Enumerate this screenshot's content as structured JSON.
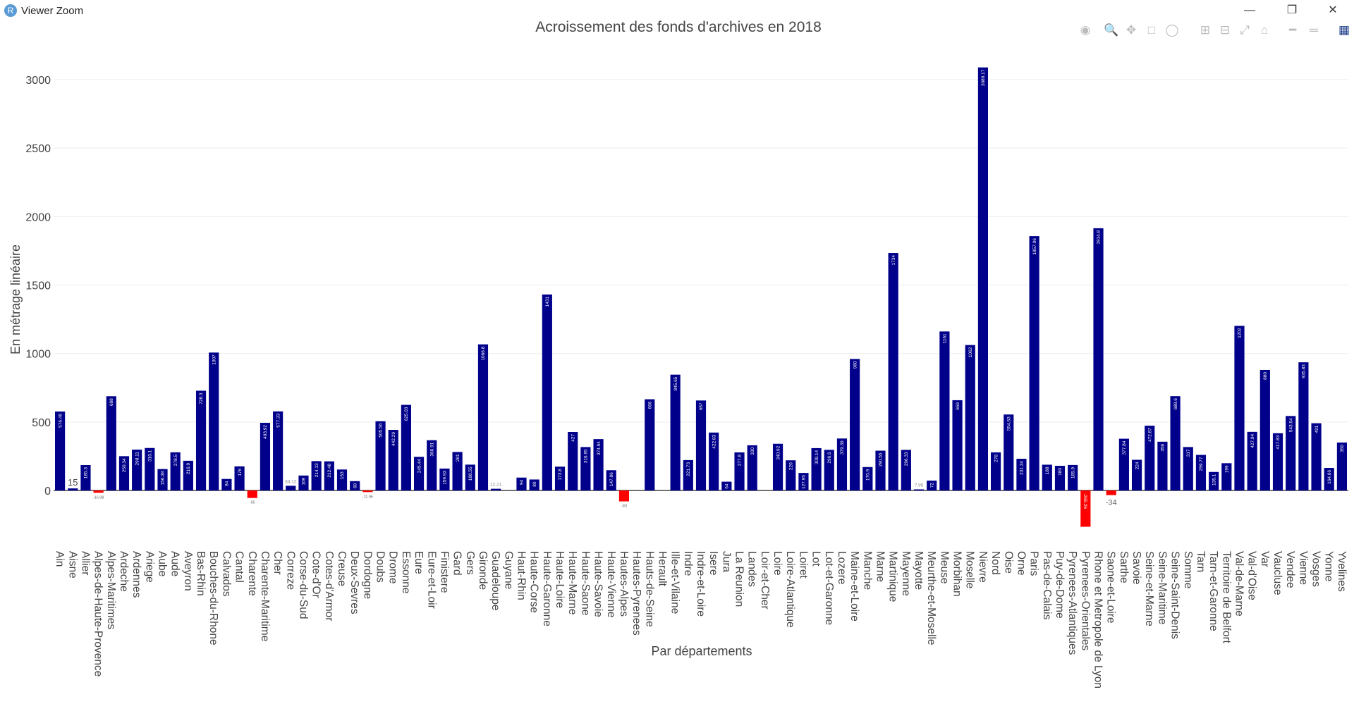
{
  "window": {
    "title": "Viewer Zoom",
    "icon": "R"
  },
  "modebar": [
    "camera-icon",
    "zoom-icon",
    "pan-icon",
    "box-select-icon",
    "lasso-icon",
    "zoom-in-icon",
    "zoom-out-icon",
    "autoscale-icon",
    "home-icon",
    "spike-lines-icon",
    "compare-hover-icon",
    "plotly-logo-icon"
  ],
  "chart_data": {
    "type": "bar",
    "title": "Acroissement des fonds d'archives en 2018",
    "xlabel": "Par départements",
    "ylabel": "En métrage linéaire",
    "ylim": [
      -300,
      3150
    ],
    "yticks": [
      0,
      500,
      1000,
      1500,
      2000,
      2500,
      3000
    ],
    "grid": true,
    "colors": {
      "positive": "#00008b",
      "negative": "#ff0000"
    },
    "categories": [
      "Ain",
      "Aisne",
      "Allier",
      "Alpes-de-Haute-Provence",
      "Alpes-Maritimes",
      "Ardeche",
      "Ardennes",
      "Ariege",
      "Aube",
      "Aude",
      "Aveyron",
      "Bas-Rhin",
      "Bouches-du-Rhone",
      "Calvados",
      "Cantal",
      "Charente",
      "Charente-Maritime",
      "Cher",
      "Correze",
      "Corse-du-Sud",
      "Cote-d'Or",
      "Cotes-d'Armor",
      "Creuse",
      "Deux-Sevres",
      "Dordogne",
      "Doubs",
      "Drome",
      "Essonne",
      "Eure",
      "Eure-et-Loir",
      "Finistere",
      "Gard",
      "Gers",
      "Gironde",
      "Guadeloupe",
      "Guyane",
      "Haut-Rhin",
      "Haute-Corse",
      "Haute-Garonne",
      "Haute-Loire",
      "Haute-Marne",
      "Haute-Saone",
      "Haute-Savoie",
      "Haute-Vienne",
      "Hautes-Alpes",
      "Hautes-Pyrenees",
      "Hauts-de-Seine",
      "Herault",
      "Ille-et-Vilaine",
      "Indre",
      "Indre-et-Loire",
      "Isere",
      "Jura",
      "La Reunion",
      "Landes",
      "Loir-et-Cher",
      "Loire",
      "Loire-Atlantique",
      "Loiret",
      "Lot",
      "Lot-et-Garonne",
      "Lozere",
      "Maine-et-Loire",
      "Manche",
      "Marne",
      "Martinique",
      "Mayenne",
      "Mayotte",
      "Meurthe-et-Moselle",
      "Meuse",
      "Morbihan",
      "Moselle",
      "Nievre",
      "Nord",
      "Oise",
      "Orne",
      "Paris",
      "Pas-de-Calais",
      "Puy-de-Dome",
      "Pyrenees-Atlantiques",
      "Pyrenees-Orientales",
      "Rhone et Metropole de Lyon",
      "Saone-et-Loire",
      "Sarthe",
      "Savoie",
      "Seine-et-Marne",
      "Seine-Maritime",
      "Seine-Saint-Denis",
      "Somme",
      "Tarn",
      "Tarn-et-Garonne",
      "Territoire de Belfort",
      "Val-de-Marne",
      "Val-d'Oise",
      "Var",
      "Vaucluse",
      "Vendee",
      "Vienne",
      "Vosges",
      "Yonne",
      "Yvelines"
    ],
    "values": [
      576.46,
      15,
      185.3,
      -16.98,
      688,
      250.34,
      298.11,
      310.1,
      156.38,
      278.5,
      216.9,
      728.3,
      1007,
      84,
      176,
      -55,
      493.92,
      577.33,
      34.12,
      109,
      214.13,
      212.48,
      153,
      68,
      -11.96,
      505.56,
      442.29,
      625.03,
      245.44,
      366.91,
      159.93,
      281,
      188.55,
      1066.8,
      12.21,
      0,
      94,
      80,
      1431,
      173.8,
      427,
      316.95,
      374.94,
      147.86,
      -80,
      0,
      666,
      0,
      845.65,
      221.73,
      657,
      422.83,
      64,
      277.8,
      330,
      0,
      340.92,
      220,
      127.95,
      309.14,
      296.6,
      379.39,
      960,
      170.9,
      290.55,
      1734,
      296.33,
      7.95,
      72,
      1161,
      659,
      1062,
      3089.17,
      278,
      554.63,
      231.34,
      1857.06,
      188,
      180,
      185.9,
      -265.26,
      1914.8,
      -34,
      377.84,
      224,
      472.87,
      356,
      688.6,
      317,
      259.77,
      135.1,
      199,
      1202,
      427.94,
      880,
      417.83,
      543.64,
      935.83,
      491,
      164.66,
      350
    ]
  }
}
